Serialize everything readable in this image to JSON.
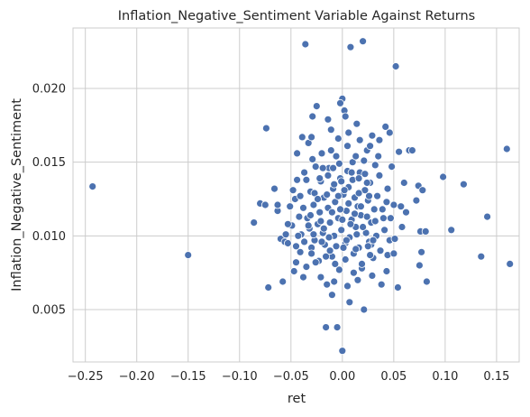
{
  "chart_data": {
    "type": "scatter",
    "title": "Inflation_Negative_Sentiment Variable Against Returns",
    "xlabel": "ret",
    "ylabel": "Inflation_Negative_Sentiment",
    "xlim": [
      -0.262,
      0.172
    ],
    "ylim": [
      0.00145,
      0.0241
    ],
    "xticks": [
      -0.25,
      -0.2,
      -0.15,
      -0.1,
      -0.05,
      0.0,
      0.05,
      0.1,
      0.15
    ],
    "xtick_labels": [
      "−0.25",
      "−0.20",
      "−0.15",
      "−0.10",
      "−0.05",
      "0.00",
      "0.05",
      "0.10",
      "0.15"
    ],
    "yticks": [
      0.005,
      0.01,
      0.015,
      0.02
    ],
    "ytick_labels": [
      "0.005",
      "0.010",
      "0.015",
      "0.020"
    ],
    "grid": true,
    "marker_color": "#4c72b0",
    "marker_edge_color": "#ffffff",
    "points": [
      [
        -0.243,
        0.01335
      ],
      [
        -0.15,
        0.0087
      ],
      [
        -0.086,
        0.0109
      ],
      [
        -0.08,
        0.0122
      ],
      [
        -0.075,
        0.0121
      ],
      [
        -0.074,
        0.0173
      ],
      [
        -0.072,
        0.0065
      ],
      [
        -0.066,
        0.0132
      ],
      [
        -0.063,
        0.0117
      ],
      [
        -0.06,
        0.0098
      ],
      [
        -0.058,
        0.0069
      ],
      [
        -0.056,
        0.0096
      ],
      [
        -0.053,
        0.0095
      ],
      [
        -0.051,
        0.012
      ],
      [
        -0.049,
        0.0107
      ],
      [
        -0.047,
        0.0076
      ],
      [
        -0.046,
        0.0125
      ],
      [
        -0.044,
        0.0138
      ],
      [
        -0.042,
        0.0113
      ],
      [
        -0.041,
        0.0089
      ],
      [
        -0.04,
        0.0101
      ],
      [
        -0.039,
        0.0167
      ],
      [
        -0.037,
        0.0143
      ],
      [
        -0.036,
        0.023
      ],
      [
        -0.035,
        0.0079
      ],
      [
        -0.034,
        0.0112
      ],
      [
        -0.033,
        0.0163
      ],
      [
        -0.032,
        0.0105
      ],
      [
        -0.031,
        0.013
      ],
      [
        -0.03,
        0.0092
      ],
      [
        -0.029,
        0.0181
      ],
      [
        -0.028,
        0.0121
      ],
      [
        -0.027,
        0.0097
      ],
      [
        -0.026,
        0.0147
      ],
      [
        -0.025,
        0.0188
      ],
      [
        -0.024,
        0.0108
      ],
      [
        -0.023,
        0.0083
      ],
      [
        -0.022,
        0.0116
      ],
      [
        -0.021,
        0.0137
      ],
      [
        -0.02,
        0.0156
      ],
      [
        -0.019,
        0.0102
      ],
      [
        -0.018,
        0.0126
      ],
      [
        -0.017,
        0.0094
      ],
      [
        -0.016,
        0.0038
      ],
      [
        -0.015,
        0.0067
      ],
      [
        -0.014,
        0.0119
      ],
      [
        -0.013,
        0.0146
      ],
      [
        -0.012,
        0.0109
      ],
      [
        -0.011,
        0.0172
      ],
      [
        -0.01,
        0.0086
      ],
      [
        -0.009,
        0.0132
      ],
      [
        -0.008,
        0.01
      ],
      [
        -0.007,
        0.0123
      ],
      [
        -0.006,
        0.0154
      ],
      [
        -0.005,
        0.0038
      ],
      [
        -0.004,
        0.0112
      ],
      [
        -0.003,
        0.0077
      ],
      [
        -0.002,
        0.0139
      ],
      [
        -0.001,
        0.0104
      ],
      [
        0.0,
        0.0022
      ],
      [
        0.001,
        0.0128
      ],
      [
        0.002,
        0.0185
      ],
      [
        0.003,
        0.0095
      ],
      [
        0.004,
        0.0117
      ],
      [
        0.005,
        0.0161
      ],
      [
        0.006,
        0.0133
      ],
      [
        0.007,
        0.0099
      ],
      [
        0.008,
        0.0228
      ],
      [
        0.009,
        0.0111
      ],
      [
        0.01,
        0.015
      ],
      [
        0.011,
        0.0088
      ],
      [
        0.012,
        0.0126
      ],
      [
        0.013,
        0.0106
      ],
      [
        0.014,
        0.0176
      ],
      [
        0.015,
        0.012
      ],
      [
        0.016,
        0.0092
      ],
      [
        0.017,
        0.0143
      ],
      [
        0.018,
        0.0114
      ],
      [
        0.019,
        0.0078
      ],
      [
        0.02,
        0.0232
      ],
      [
        0.021,
        0.005
      ],
      [
        0.022,
        0.0131
      ],
      [
        0.023,
        0.0102
      ],
      [
        0.024,
        0.0158
      ],
      [
        0.025,
        0.0124
      ],
      [
        0.026,
        0.0096
      ],
      [
        0.027,
        0.0136
      ],
      [
        0.028,
        0.0109
      ],
      [
        0.029,
        0.0168
      ],
      [
        0.03,
        0.0085
      ],
      [
        0.031,
        0.0118
      ],
      [
        0.032,
        0.0148
      ],
      [
        0.033,
        0.01
      ],
      [
        0.034,
        0.0127
      ],
      [
        0.036,
        0.0141
      ],
      [
        0.038,
        0.0067
      ],
      [
        0.04,
        0.0112
      ],
      [
        0.042,
        0.0174
      ],
      [
        0.044,
        0.0132
      ],
      [
        0.046,
        0.0097
      ],
      [
        0.048,
        0.0147
      ],
      [
        0.05,
        0.0121
      ],
      [
        0.052,
        0.0215
      ],
      [
        0.054,
        0.0065
      ],
      [
        0.055,
        0.0157
      ],
      [
        0.058,
        0.0106
      ],
      [
        0.06,
        0.0136
      ],
      [
        0.062,
        0.0116
      ],
      [
        0.065,
        0.0158
      ],
      [
        0.068,
        0.0158
      ],
      [
        0.072,
        0.0124
      ],
      [
        0.074,
        0.0134
      ],
      [
        0.075,
        0.008
      ],
      [
        0.076,
        0.0103
      ],
      [
        0.077,
        0.0089
      ],
      [
        0.078,
        0.0131
      ],
      [
        0.081,
        0.0103
      ],
      [
        0.082,
        0.0069
      ],
      [
        0.098,
        0.014
      ],
      [
        0.106,
        0.0104
      ],
      [
        0.118,
        0.0135
      ],
      [
        0.135,
        0.0086
      ],
      [
        0.141,
        0.0113
      ],
      [
        0.16,
        0.0159
      ],
      [
        0.163,
        0.0081
      ],
      [
        -0.048,
        0.0131
      ],
      [
        -0.043,
        0.01
      ],
      [
        -0.038,
        0.0119
      ],
      [
        -0.031,
        0.0114
      ],
      [
        -0.027,
        0.0129
      ],
      [
        -0.024,
        0.0125
      ],
      [
        -0.021,
        0.011
      ],
      [
        -0.018,
        0.0105
      ],
      [
        -0.015,
        0.0128
      ],
      [
        -0.013,
        0.0099
      ],
      [
        -0.01,
        0.0116
      ],
      [
        -0.008,
        0.0135
      ],
      [
        -0.006,
        0.0093
      ],
      [
        -0.004,
        0.0127
      ],
      [
        -0.002,
        0.0118
      ],
      [
        0.0,
        0.0111
      ],
      [
        0.002,
        0.0131
      ],
      [
        0.004,
        0.0097
      ],
      [
        0.006,
        0.0122
      ],
      [
        0.008,
        0.0108
      ],
      [
        0.01,
        0.0138
      ],
      [
        0.012,
        0.0115
      ],
      [
        0.014,
        0.0101
      ],
      [
        0.016,
        0.0129
      ],
      [
        0.018,
        0.012
      ],
      [
        0.02,
        0.0106
      ],
      [
        0.022,
        0.0142
      ],
      [
        0.024,
        0.0113
      ],
      [
        0.026,
        0.0127
      ],
      [
        0.028,
        0.0094
      ],
      [
        -0.029,
        0.0152
      ],
      [
        -0.019,
        0.0146
      ],
      [
        -0.011,
        0.0158
      ],
      [
        -0.003,
        0.0149
      ],
      [
        0.005,
        0.0144
      ],
      [
        0.013,
        0.0154
      ],
      [
        0.021,
        0.0151
      ],
      [
        0.027,
        0.0161
      ],
      [
        0.035,
        0.0154
      ],
      [
        -0.035,
        0.0138
      ],
      [
        -0.026,
        0.0082
      ],
      [
        -0.016,
        0.0086
      ],
      [
        -0.007,
        0.0081
      ],
      [
        0.003,
        0.0084
      ],
      [
        0.011,
        0.0075
      ],
      [
        0.019,
        0.0081
      ],
      [
        0.027,
        0.0087
      ],
      [
        0.037,
        0.009
      ],
      [
        0.044,
        0.0087
      ],
      [
        0.041,
        0.0104
      ],
      [
        -0.053,
        0.0108
      ],
      [
        0.047,
        0.0112
      ],
      [
        -0.045,
        0.0093
      ],
      [
        0.051,
        0.0098
      ],
      [
        -0.041,
        0.0127
      ],
      [
        0.043,
        0.0123
      ],
      [
        -0.033,
        0.0107
      ],
      [
        0.039,
        0.0118
      ],
      [
        -0.028,
        0.0101
      ],
      [
        0.032,
        0.011
      ],
      [
        -0.022,
        0.0139
      ],
      [
        0.024,
        0.0136
      ],
      [
        -0.014,
        0.0141
      ],
      [
        0.016,
        0.0139
      ],
      [
        -0.009,
        0.0146
      ],
      [
        0.009,
        0.0143
      ],
      [
        -0.001,
        0.0137
      ],
      [
        0.001,
        0.0092
      ],
      [
        -0.012,
        0.009
      ],
      [
        0.013,
        0.0091
      ],
      [
        -0.02,
        0.0096
      ],
      [
        0.025,
        0.0093
      ],
      [
        -0.03,
        0.0088
      ],
      [
        0.03,
        0.0097
      ],
      [
        -0.037,
        0.0096
      ],
      [
        0.006,
        0.017
      ],
      [
        -0.004,
        0.0166
      ],
      [
        0.017,
        0.0165
      ],
      [
        -0.014,
        0.0179
      ],
      [
        0.003,
        0.0181
      ],
      [
        0.0,
        0.0193
      ],
      [
        -0.002,
        0.019
      ],
      [
        -0.03,
        0.0167
      ],
      [
        0.036,
        0.0165
      ],
      [
        -0.044,
        0.0156
      ],
      [
        0.046,
        0.017
      ],
      [
        -0.045,
        0.0082
      ],
      [
        0.05,
        0.0088
      ],
      [
        -0.055,
        0.0101
      ],
      [
        0.057,
        0.012
      ],
      [
        0.007,
        0.0055
      ],
      [
        -0.008,
        0.0069
      ],
      [
        0.015,
        0.007
      ],
      [
        -0.021,
        0.0072
      ],
      [
        0.029,
        0.0073
      ],
      [
        -0.01,
        0.006
      ],
      [
        0.005,
        0.0066
      ],
      [
        -0.038,
        0.0072
      ],
      [
        0.043,
        0.0076
      ],
      [
        -0.063,
        0.0121
      ]
    ]
  }
}
